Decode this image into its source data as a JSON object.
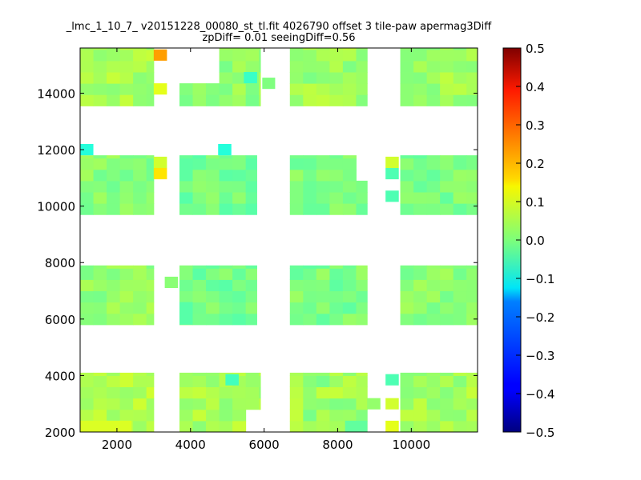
{
  "chart_data": {
    "type": "heatmap",
    "title": "_lmc_1_10_7_ v20151228_00080_st_tl.fit 4026790 offset 3 tile-paw apermag3Diff",
    "subtitle": "zpDiff= 0.01 seeingDiff=0.56",
    "xlim": [
      1000,
      11800
    ],
    "ylim": [
      2000,
      15600
    ],
    "x_ticks": [
      2000,
      4000,
      6000,
      8000,
      10000
    ],
    "y_ticks": [
      2000,
      4000,
      6000,
      8000,
      10000,
      12000,
      14000
    ],
    "colorbar": {
      "min": -0.5,
      "max": 0.5,
      "ticks": [
        0.5,
        0.4,
        0.3,
        0.2,
        0.1,
        0.0,
        -0.1,
        -0.2,
        -0.3,
        -0.4,
        -0.5
      ],
      "colormap": "jet"
    },
    "cell_size": [
      360,
      400
    ],
    "tiles": [
      {
        "x0": 1000,
        "x1": 3000,
        "y0": 2000,
        "y1": 4100,
        "base": 0.05,
        "spread": 0.03
      },
      {
        "x0": 3700,
        "x1": 5900,
        "y0": 2000,
        "y1": 4100,
        "base": 0.04,
        "spread": 0.035
      },
      {
        "x0": 6700,
        "x1": 8800,
        "y0": 2000,
        "y1": 4100,
        "base": 0.03,
        "spread": 0.04
      },
      {
        "x0": 9700,
        "x1": 11800,
        "y0": 2000,
        "y1": 4100,
        "base": 0.04,
        "spread": 0.035
      },
      {
        "x0": 1000,
        "x1": 3000,
        "y0": 5800,
        "y1": 7900,
        "base": 0.02,
        "spread": 0.03
      },
      {
        "x0": 3700,
        "x1": 5800,
        "y0": 5800,
        "y1": 7900,
        "base": -0.01,
        "spread": 0.03
      },
      {
        "x0": 6700,
        "x1": 8800,
        "y0": 5800,
        "y1": 7900,
        "base": 0.0,
        "spread": 0.035
      },
      {
        "x0": 9700,
        "x1": 11800,
        "y0": 5800,
        "y1": 7900,
        "base": 0.01,
        "spread": 0.03
      },
      {
        "x0": 1000,
        "x1": 3000,
        "y0": 9700,
        "y1": 11800,
        "base": 0.01,
        "spread": 0.03
      },
      {
        "x0": 3700,
        "x1": 5800,
        "y0": 9700,
        "y1": 11800,
        "base": -0.01,
        "spread": 0.03
      },
      {
        "x0": 6700,
        "x1": 8800,
        "y0": 9700,
        "y1": 11800,
        "base": 0.0,
        "spread": 0.03
      },
      {
        "x0": 9700,
        "x1": 11800,
        "y0": 9700,
        "y1": 11800,
        "base": 0.0,
        "spread": 0.03
      },
      {
        "x0": 1000,
        "x1": 3000,
        "y0": 13550,
        "y1": 15600,
        "base": 0.04,
        "spread": 0.03
      },
      {
        "x0": 3700,
        "x1": 5900,
        "y0": 13550,
        "y1": 15600,
        "base": 0.02,
        "spread": 0.03
      },
      {
        "x0": 6700,
        "x1": 8800,
        "y0": 13550,
        "y1": 15600,
        "base": 0.03,
        "spread": 0.035
      },
      {
        "x0": 9700,
        "x1": 11800,
        "y0": 13550,
        "y1": 15600,
        "base": 0.03,
        "spread": 0.035
      }
    ],
    "gaps": [
      {
        "x0": 3700,
        "x1": 4500,
        "y0": 14150,
        "y1": 15600
      },
      {
        "x0": 5200,
        "x1": 5900,
        "y0": 2000,
        "y1": 2800
      },
      {
        "x0": 3300,
        "x1": 3700,
        "y0": 6600,
        "y1": 7100
      },
      {
        "x0": 8400,
        "x1": 8800,
        "y0": 10850,
        "y1": 11800
      }
    ],
    "outliers": [
      {
        "x": 1000,
        "y": 11800,
        "w": 360,
        "h": 400,
        "v": -0.09
      },
      {
        "x": 4750,
        "y": 11800,
        "w": 360,
        "h": 400,
        "v": -0.09
      },
      {
        "x": 3000,
        "y": 15150,
        "w": 360,
        "h": 400,
        "v": 0.22
      },
      {
        "x": 3000,
        "y": 13950,
        "w": 360,
        "h": 400,
        "v": 0.1
      },
      {
        "x": 3000,
        "y": 11350,
        "w": 360,
        "h": 400,
        "v": 0.08
      },
      {
        "x": 3000,
        "y": 10950,
        "w": 360,
        "h": 400,
        "v": 0.15
      },
      {
        "x": 9300,
        "y": 11350,
        "w": 360,
        "h": 400,
        "v": 0.08
      },
      {
        "x": 9300,
        "y": 10950,
        "w": 360,
        "h": 400,
        "v": -0.05
      },
      {
        "x": 9300,
        "y": 10150,
        "w": 360,
        "h": 400,
        "v": -0.05
      },
      {
        "x": 9300,
        "y": 3650,
        "w": 360,
        "h": 400,
        "v": -0.05
      },
      {
        "x": 9300,
        "y": 2800,
        "w": 360,
        "h": 400,
        "v": 0.08
      },
      {
        "x": 9300,
        "y": 2000,
        "w": 360,
        "h": 400,
        "v": 0.1
      },
      {
        "x": 8800,
        "y": 2800,
        "w": 360,
        "h": 400,
        "v": 0.02
      },
      {
        "x": 3300,
        "y": 7100,
        "w": 360,
        "h": 400,
        "v": 0.01
      },
      {
        "x": 3700,
        "y": 5800,
        "w": 360,
        "h": 800,
        "v": -0.04
      },
      {
        "x": 4950,
        "y": 3650,
        "w": 360,
        "h": 400,
        "v": -0.06
      },
      {
        "x": 1000,
        "y": 2000,
        "w": 1400,
        "h": 400,
        "v": 0.09
      },
      {
        "x": 5950,
        "y": 14150,
        "w": 350,
        "h": 400,
        "v": 0.0
      },
      {
        "x": 8200,
        "y": 2000,
        "w": 600,
        "h": 400,
        "v": -0.03
      },
      {
        "x": 5450,
        "y": 14350,
        "w": 360,
        "h": 400,
        "v": -0.07
      }
    ]
  }
}
